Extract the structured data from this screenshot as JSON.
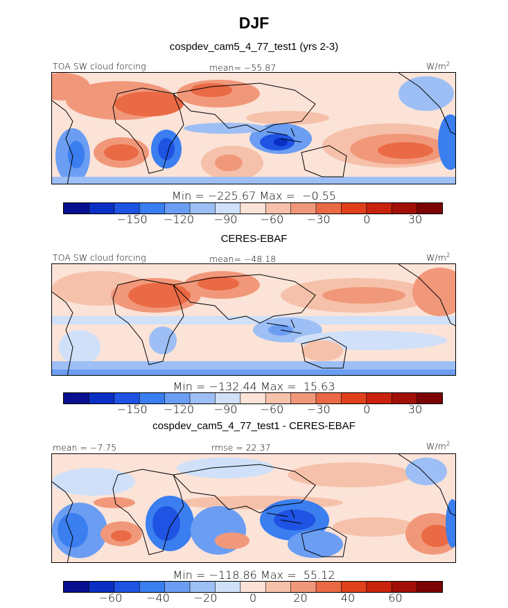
{
  "title": "DJF",
  "colors": [
    "#08108f",
    "#0a2fc4",
    "#1e53e3",
    "#3a7ef0",
    "#6b9ef3",
    "#9dbff5",
    "#cfe0f8",
    "#fbe3d8",
    "#f6c1aa",
    "#f1987a",
    "#ea6a45",
    "#e0411c",
    "#c9230d",
    "#a10f07",
    "#7c0303"
  ],
  "panels": [
    {
      "heading": "cospdev_cam5_4_77_test1 (yrs 2-3)",
      "left_label": "TOA SW cloud forcing",
      "center_label": "mean= −55.87",
      "unit": "W/m",
      "unit_sup": "2",
      "min_max": "Min = −225.67 Max =  −0.55",
      "ticks": [
        "−150",
        "−120",
        "−90",
        "−60",
        "−30",
        "0",
        "30"
      ]
    },
    {
      "heading": "CERES-EBAF",
      "left_label": "TOA SW cloud forcing",
      "center_label": "mean= −48.18",
      "unit": "W/m",
      "unit_sup": "2",
      "min_max": "Min = −132.44 Max =  15.63",
      "ticks": [
        "−150",
        "−120",
        "−90",
        "−60",
        "−30",
        "0",
        "30"
      ]
    },
    {
      "heading": "cospdev_cam5_4_77_test1 - CERES-EBAF",
      "left_label": "mean =  −7.75",
      "center_label": "rmse =  22.37",
      "unit": "W/m",
      "unit_sup": "2",
      "min_max": "Min = −118.86 Max =  55.12",
      "ticks": [
        "−60",
        "−40",
        "−20",
        "0",
        "20",
        "40",
        "60"
      ]
    }
  ]
}
